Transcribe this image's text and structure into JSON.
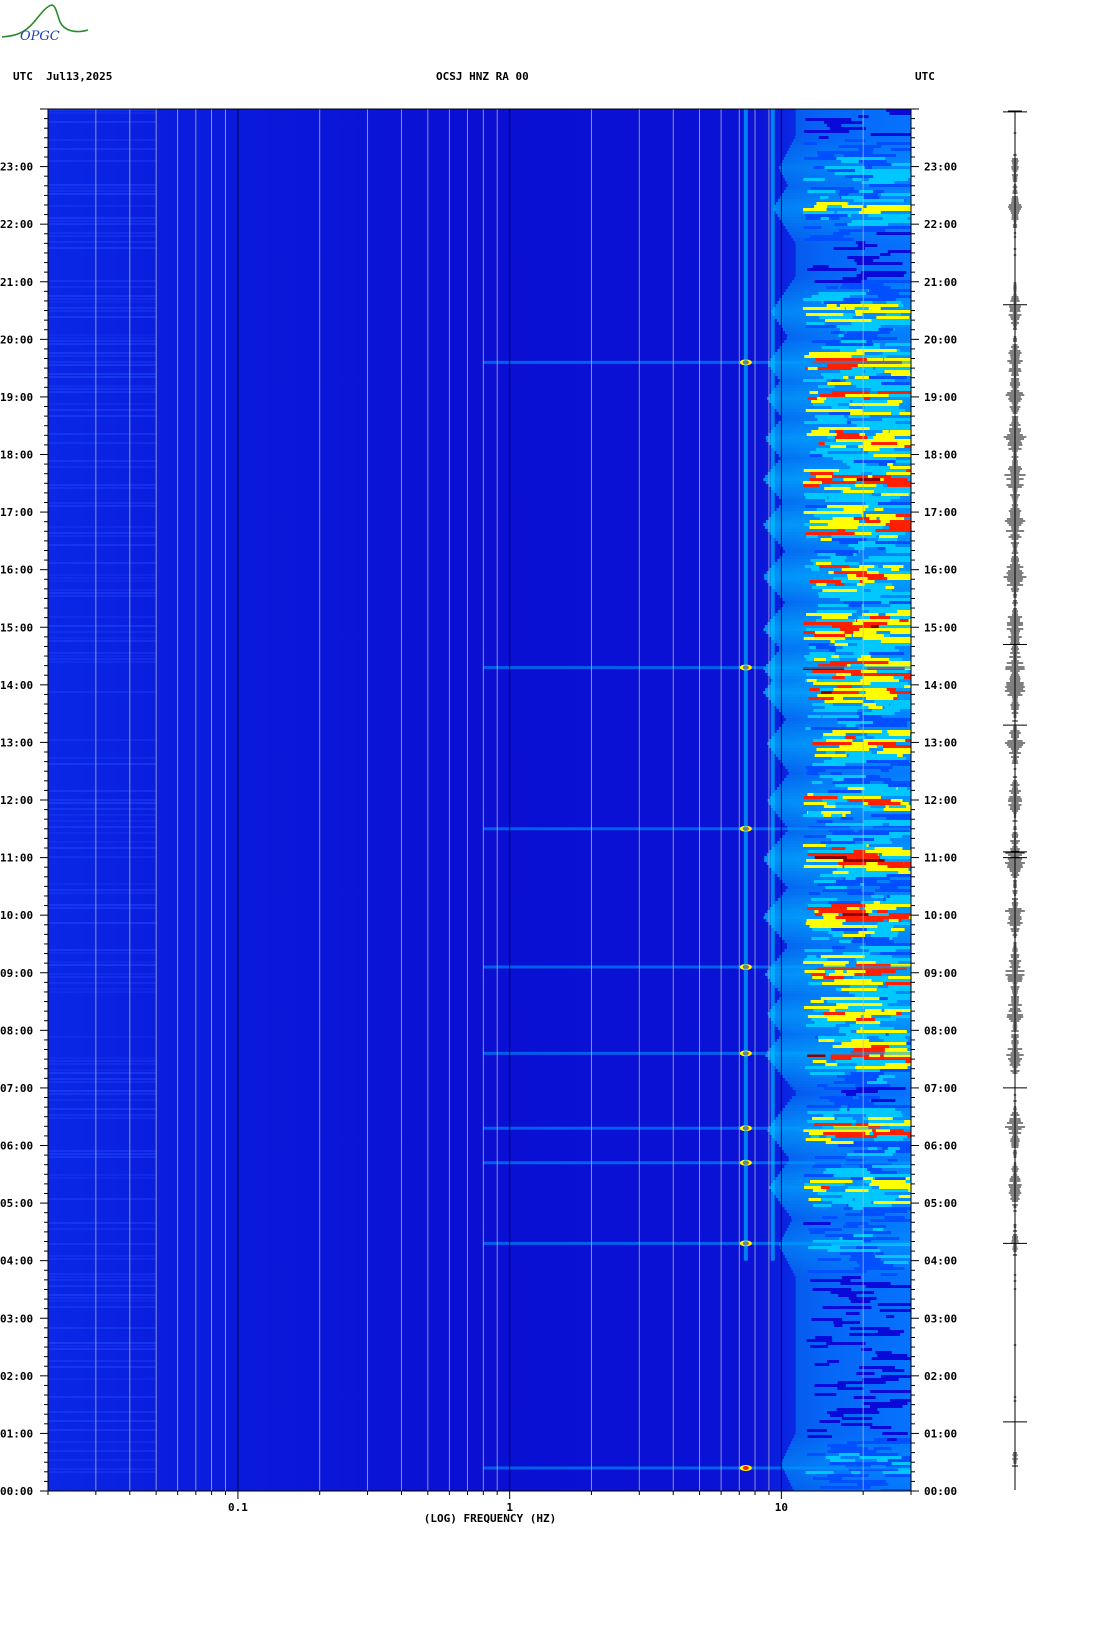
{
  "logo": {
    "text": "OPGC",
    "accent": "#2a8a2a",
    "text_color": "#1f3fae"
  },
  "header": {
    "left": "UTC  Jul13,2025",
    "center": "OCSJ HNZ RA 00",
    "right": "UTC"
  },
  "footer_mark": "",
  "chart_data": {
    "type": "heatmap",
    "title": "OCSJ HNZ RA 00",
    "date": "Jul13,2025",
    "timezone": "UTC",
    "xlabel": "(LOG) FREQUENCY (HZ)",
    "x_scale": "log",
    "xlim": [
      0.02,
      30
    ],
    "x_ticks": [
      {
        "value": 0.1,
        "label": "0.1"
      },
      {
        "value": 1,
        "label": "1"
      },
      {
        "value": 10,
        "label": "10"
      }
    ],
    "ylim": [
      "00:00",
      "24:00"
    ],
    "y_ticks": [
      "00:00",
      "01:00",
      "02:00",
      "03:00",
      "04:00",
      "05:00",
      "06:00",
      "07:00",
      "08:00",
      "09:00",
      "10:00",
      "11:00",
      "12:00",
      "13:00",
      "14:00",
      "15:00",
      "16:00",
      "17:00",
      "18:00",
      "19:00",
      "20:00",
      "21:00",
      "22:00",
      "23:00"
    ],
    "colormap": [
      "#0a0ad8",
      "#0050ff",
      "#00c8ff",
      "#ffff00",
      "#ff2000",
      "#8a0000"
    ],
    "background_color": "#0a0fd0",
    "gridlines_hz": [
      0.03,
      0.04,
      0.05,
      0.06,
      0.07,
      0.08,
      0.09,
      0.1,
      0.2,
      0.3,
      0.4,
      0.5,
      0.6,
      0.7,
      0.8,
      0.9,
      1,
      2,
      3,
      4,
      5,
      6,
      7,
      8,
      9,
      10,
      20
    ],
    "high_energy_band_hz": [
      12,
      30
    ],
    "high_energy_hours": [
      {
        "hour": 0.5,
        "level": 0.55
      },
      {
        "hour": 4.3,
        "level": 0.6
      },
      {
        "hour": 5.3,
        "level": 0.85
      },
      {
        "hour": 6.3,
        "level": 0.9
      },
      {
        "hour": 7.6,
        "level": 0.95
      },
      {
        "hour": 8.3,
        "level": 0.9
      },
      {
        "hour": 9.0,
        "level": 0.95
      },
      {
        "hour": 10.0,
        "level": 1.0
      },
      {
        "hour": 11.0,
        "level": 1.0
      },
      {
        "hour": 12.0,
        "level": 0.9
      },
      {
        "hour": 13.0,
        "level": 0.9
      },
      {
        "hour": 13.9,
        "level": 1.0
      },
      {
        "hour": 14.3,
        "level": 1.0
      },
      {
        "hour": 15.0,
        "level": 1.0
      },
      {
        "hour": 15.9,
        "level": 1.0
      },
      {
        "hour": 16.8,
        "level": 1.0
      },
      {
        "hour": 17.6,
        "level": 1.0
      },
      {
        "hour": 18.3,
        "level": 0.95
      },
      {
        "hour": 19.0,
        "level": 0.9
      },
      {
        "hour": 19.6,
        "level": 0.9
      },
      {
        "hour": 20.5,
        "level": 0.8
      },
      {
        "hour": 22.3,
        "level": 0.75
      },
      {
        "hour": 23.0,
        "level": 0.6
      }
    ],
    "narrowband_lines_hz": [
      7.4,
      9.3
    ],
    "broadband_events_hours": [
      0.4,
      4.3,
      5.7,
      6.3,
      7.6,
      9.1,
      11.5,
      14.3,
      19.6
    ]
  }
}
